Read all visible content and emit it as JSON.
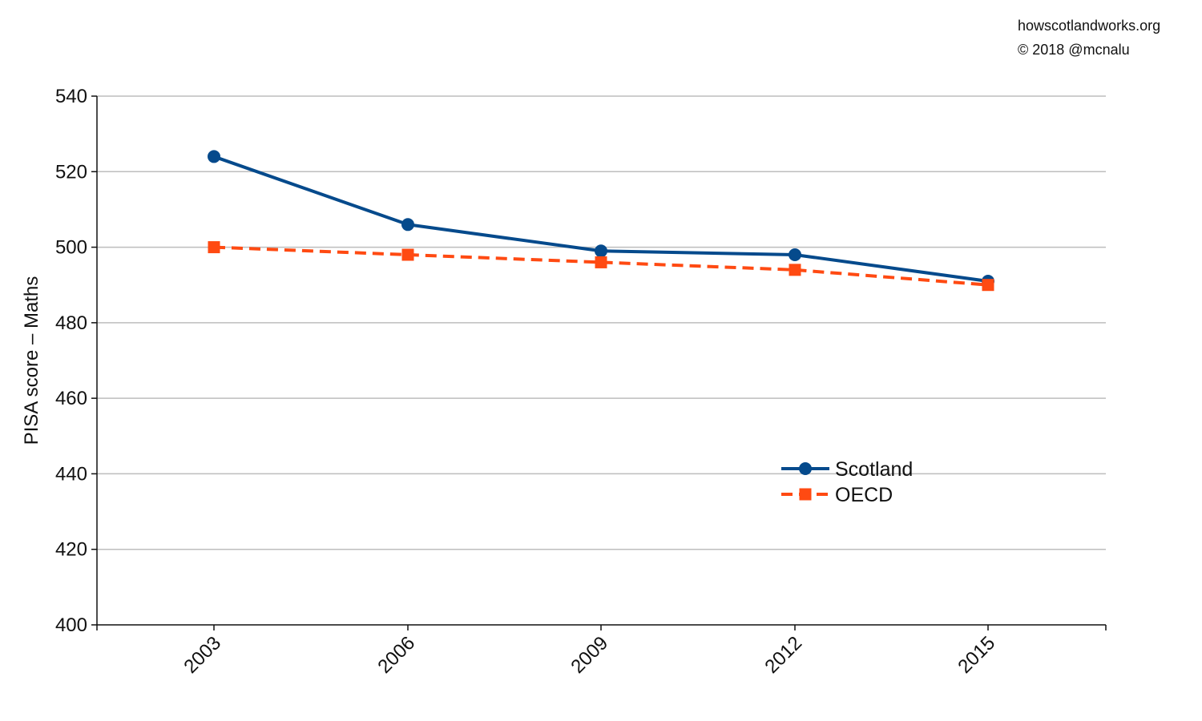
{
  "credits": {
    "site": "howscotlandworks.org",
    "copyright": "© 2018  @mcnalu"
  },
  "chart_data": {
    "type": "line",
    "ylabel": "PISA score – Maths",
    "xlabel": "",
    "categories": [
      "2003",
      "2006",
      "2009",
      "2012",
      "2015"
    ],
    "ylim": [
      400,
      540
    ],
    "yticks": [
      400,
      420,
      440,
      460,
      480,
      500,
      520,
      540
    ],
    "grid": "horizontal",
    "legend_position": "center-right",
    "series": [
      {
        "name": "Scotland",
        "values": [
          524,
          506,
          499,
          498,
          491
        ],
        "color": "#054a8c",
        "line_style": "solid",
        "marker": "circle"
      },
      {
        "name": "OECD",
        "values": [
          500,
          498,
          496,
          494,
          490
        ],
        "color": "#ff4a12",
        "line_style": "dashed",
        "marker": "square"
      }
    ]
  }
}
